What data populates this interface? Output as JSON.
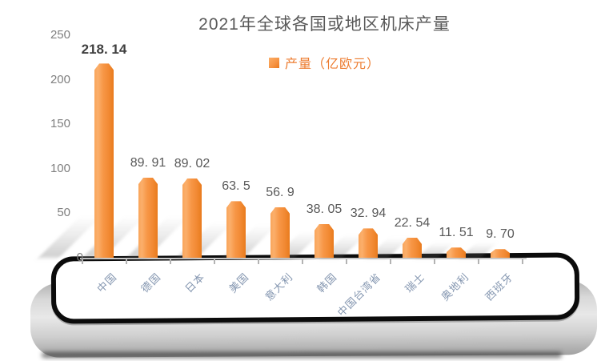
{
  "title": "2021年全球各国或地区机床产量",
  "legend": {
    "label": "产量（亿欧元）"
  },
  "colors": {
    "accent": "#F79646",
    "title_text": "#595959",
    "legend_text": "#ED7D31",
    "category_text": "#8496B0",
    "value_text": "#595959",
    "axis_tick_text": "#7F7F7F"
  },
  "chart_data": {
    "type": "bar",
    "title": "2021年全球各国或地区机床产量",
    "categories": [
      "中国",
      "德国",
      "日本",
      "美国",
      "意大利",
      "韩国",
      "中国台湾省",
      "瑞士",
      "奥地利",
      "西班牙"
    ],
    "values": [
      218.14,
      89.91,
      89.02,
      63.5,
      56.9,
      38.05,
      32.94,
      22.54,
      11.51,
      9.7
    ],
    "value_labels": [
      "218. 14",
      "89. 91",
      "89. 02",
      "63. 5",
      "56. 9",
      "38. 05",
      "32. 94",
      "22. 54",
      "11. 51",
      "9. 70"
    ],
    "series_name": "产量（亿欧元）",
    "xlabel": "",
    "ylabel": "",
    "ylim": [
      0,
      250
    ],
    "yticks": [
      0,
      50,
      100,
      150,
      200,
      250
    ],
    "grid": false,
    "legend_position": "top-center",
    "bar_color": "#F79646",
    "style": "3d-cylinder-bars-on-tray"
  }
}
